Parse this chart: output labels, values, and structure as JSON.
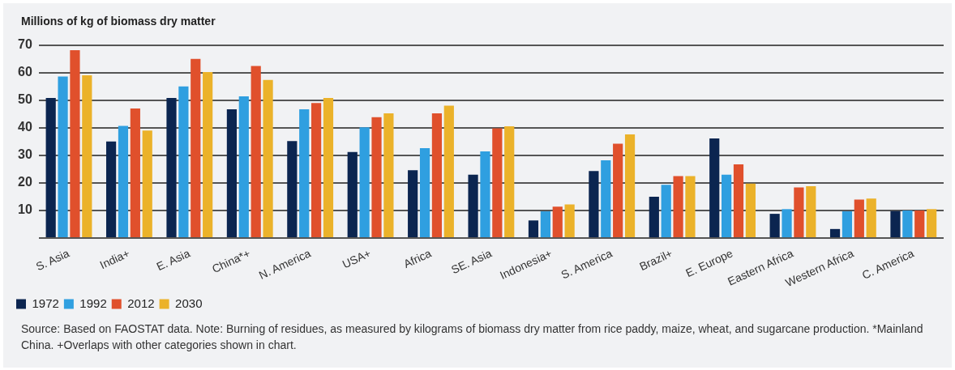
{
  "chart_data": {
    "type": "bar",
    "ylabel": "Millions of kg of biomass dry matter",
    "categories": [
      "S. Asia",
      "India+",
      "E. Asia",
      "China*+",
      "N. America",
      "USA+",
      "Africa",
      "SE. Asia",
      "Indonesia+",
      "S. America",
      "Brazil+",
      "E. Europe",
      "Eastern Africa",
      "Western Africa",
      "C. America"
    ],
    "series": [
      {
        "name": "1972",
        "color": "#0b2550",
        "values": [
          50.8,
          35.0,
          50.8,
          46.7,
          35.2,
          31.2,
          24.6,
          23.0,
          6.4,
          24.3,
          15.0,
          36.1,
          8.8,
          3.3,
          9.8
        ]
      },
      {
        "name": "1992",
        "color": "#2f9fe0",
        "values": [
          58.6,
          40.7,
          55.0,
          51.4,
          46.7,
          40.2,
          32.6,
          31.4,
          9.7,
          28.2,
          19.3,
          23.0,
          10.5,
          9.7,
          10.0
        ]
      },
      {
        "name": "2012",
        "color": "#e0502c",
        "values": [
          68.1,
          47.0,
          65.0,
          62.4,
          49.0,
          43.8,
          45.2,
          39.8,
          11.4,
          34.2,
          22.5,
          26.7,
          18.4,
          14.0,
          10.0
        ]
      },
      {
        "name": "2030",
        "color": "#ebb22a",
        "values": [
          59.0,
          39.0,
          60.2,
          57.3,
          50.8,
          45.2,
          48.0,
          40.5,
          12.2,
          37.6,
          22.5,
          19.8,
          18.8,
          14.3,
          10.5
        ]
      }
    ],
    "ylim": [
      0,
      70
    ],
    "yticks": [
      {
        "value": 0,
        "label": null
      },
      10,
      20,
      30,
      40,
      50,
      60,
      70
    ],
    "grid": "y",
    "legend": "bottom left",
    "annotations": [
      "Source: Based on FAOSTAT data. Note: Burning of residues, as measured by kilograms of biomass dry matter from rice paddy, maize, wheat, and sugarcane production. *Mainland China. +Overlaps with other categories shown in chart."
    ]
  }
}
